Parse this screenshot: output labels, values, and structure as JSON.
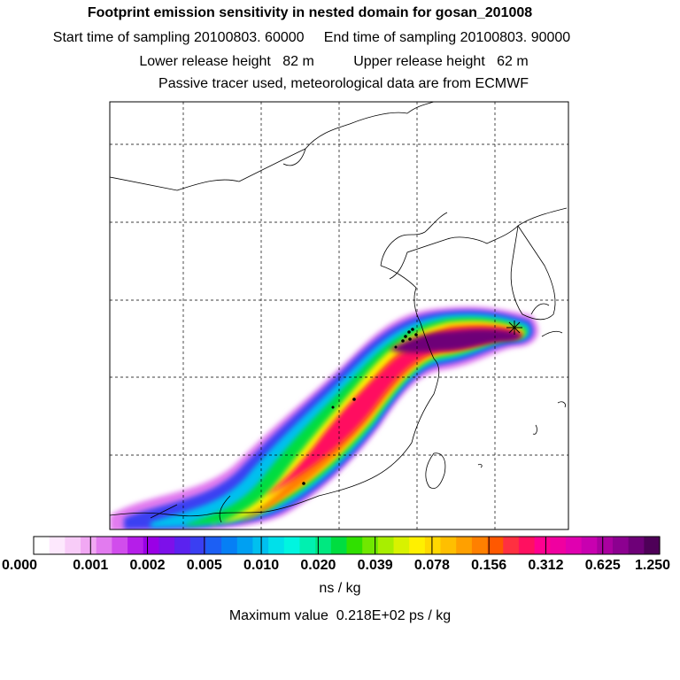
{
  "titles": {
    "main": "Footprint emission sensitivity in nested domain for gosan_201008",
    "sampling": "Start time of sampling 20100803. 60000     End time of sampling 20100803. 90000",
    "release": "Lower release height   82 m          Upper release height   62 m",
    "tracer": "Passive tracer used, meteorological data are from ECMWF"
  },
  "colorbar": {
    "tick_labels": [
      "0.000",
      "0.001",
      "0.002",
      "0.005",
      "0.010",
      "0.020",
      "0.039",
      "0.078",
      "0.156",
      "0.312",
      "0.625",
      "1.250"
    ],
    "colors": [
      "#ffffff",
      "#fde8fd",
      "#f8ccf8",
      "#f1a8f3",
      "#e27bef",
      "#d14dec",
      "#b51ee9",
      "#9a00e6",
      "#7d10ea",
      "#5b22ef",
      "#3a3ff2",
      "#1c5ff4",
      "#067ff5",
      "#00a0f2",
      "#00c0ef",
      "#00e0ea",
      "#00f5e0",
      "#00f0b0",
      "#00e880",
      "#00dd40",
      "#30e000",
      "#70e800",
      "#a8ee00",
      "#d8f200",
      "#fff000",
      "#ffd800",
      "#ffbf00",
      "#ffa000",
      "#ff8000",
      "#ff5800",
      "#ff3040",
      "#ff1060",
      "#ff0090",
      "#f000a0",
      "#e000b0",
      "#c800b0",
      "#aa00a0",
      "#8c0090",
      "#6e0078",
      "#4e0058"
    ],
    "units": "ns / kg"
  },
  "max_value_text": "Maximum value  0.218E+02 ps / kg"
}
